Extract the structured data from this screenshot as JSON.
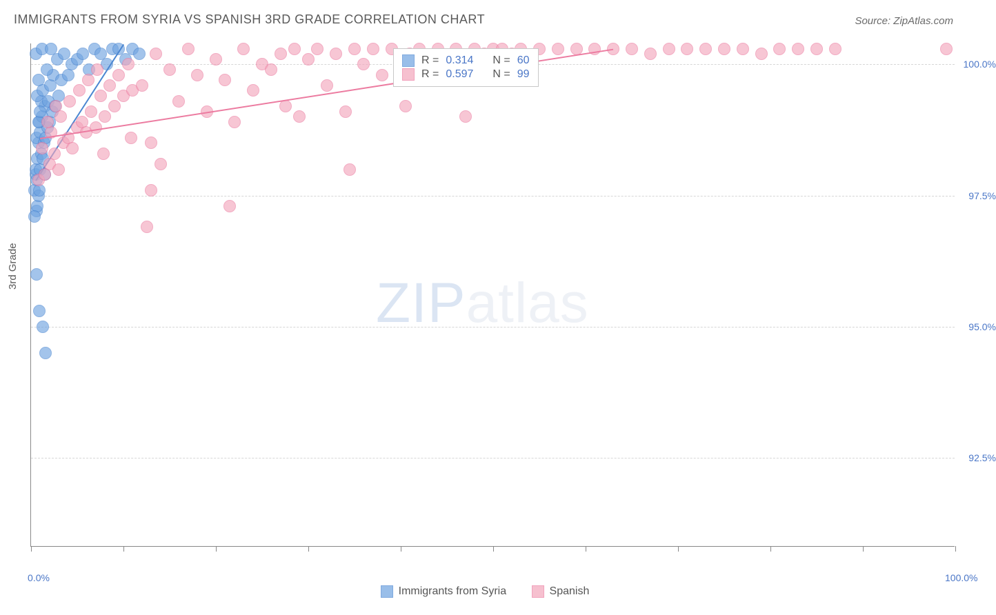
{
  "title": "IMMIGRANTS FROM SYRIA VS SPANISH 3RD GRADE CORRELATION CHART",
  "source": "Source: ZipAtlas.com",
  "yaxis_title": "3rd Grade",
  "watermark_zip": "ZIP",
  "watermark_atlas": "atlas",
  "chart": {
    "type": "scatter",
    "xlim": [
      0,
      100
    ],
    "ylim": [
      90.8,
      100.4
    ],
    "y_gridlines": [
      92.5,
      95.0,
      97.5,
      100.0
    ],
    "y_tick_labels": [
      "92.5%",
      "95.0%",
      "97.5%",
      "100.0%"
    ],
    "x_ticks": [
      0,
      10,
      20,
      30,
      40,
      50,
      60,
      70,
      80,
      90,
      100
    ],
    "x_tick_labels": {
      "0": "0.0%",
      "100": "100.0%"
    },
    "background_color": "#ffffff",
    "grid_color": "#d6d6d6",
    "dot_radius": 9,
    "dot_stroke_width": 1.5,
    "dot_fill_opacity": 0.28,
    "series": [
      {
        "name": "Immigrants from Syria",
        "color": "#6fa3e0",
        "stroke": "#4a86d1",
        "R": 0.314,
        "N": 60,
        "trend": {
          "x1": 0.5,
          "y1": 97.8,
          "x2": 10.0,
          "y2": 100.4
        },
        "points": [
          [
            0.4,
            97.6
          ],
          [
            0.5,
            97.9
          ],
          [
            0.6,
            97.2
          ],
          [
            0.7,
            97.3
          ],
          [
            0.8,
            97.5
          ],
          [
            0.6,
            97.8
          ],
          [
            0.9,
            97.6
          ],
          [
            0.5,
            98.0
          ],
          [
            0.7,
            98.2
          ],
          [
            1.0,
            98.0
          ],
          [
            1.1,
            98.3
          ],
          [
            0.8,
            98.5
          ],
          [
            1.3,
            98.2
          ],
          [
            0.6,
            98.6
          ],
          [
            1.0,
            98.7
          ],
          [
            1.4,
            98.5
          ],
          [
            0.9,
            98.9
          ],
          [
            1.6,
            98.6
          ],
          [
            1.2,
            99.0
          ],
          [
            1.8,
            98.8
          ],
          [
            1.5,
            99.2
          ],
          [
            2.0,
            98.9
          ],
          [
            1.1,
            99.3
          ],
          [
            2.3,
            99.1
          ],
          [
            0.7,
            99.4
          ],
          [
            1.9,
            99.3
          ],
          [
            2.6,
            99.2
          ],
          [
            1.3,
            99.5
          ],
          [
            2.1,
            99.6
          ],
          [
            3.0,
            99.4
          ],
          [
            0.8,
            99.7
          ],
          [
            2.4,
            99.8
          ],
          [
            1.7,
            99.9
          ],
          [
            3.3,
            99.7
          ],
          [
            2.8,
            100.1
          ],
          [
            0.5,
            100.2
          ],
          [
            1.2,
            100.3
          ],
          [
            4.0,
            99.8
          ],
          [
            3.6,
            100.2
          ],
          [
            4.4,
            100.0
          ],
          [
            2.2,
            100.3
          ],
          [
            5.0,
            100.1
          ],
          [
            5.6,
            100.2
          ],
          [
            6.3,
            99.9
          ],
          [
            6.9,
            100.3
          ],
          [
            7.5,
            100.2
          ],
          [
            8.2,
            100.0
          ],
          [
            8.8,
            100.3
          ],
          [
            9.5,
            100.3
          ],
          [
            10.2,
            100.1
          ],
          [
            11.0,
            100.3
          ],
          [
            11.7,
            100.2
          ],
          [
            0.9,
            95.3
          ],
          [
            1.3,
            95.0
          ],
          [
            1.6,
            94.5
          ],
          [
            0.6,
            96.0
          ],
          [
            0.8,
            98.9
          ],
          [
            0.4,
            97.1
          ],
          [
            1.5,
            97.9
          ],
          [
            1.0,
            99.1
          ]
        ]
      },
      {
        "name": "Spanish",
        "color": "#f3a6bc",
        "stroke": "#ec7ba0",
        "R": 0.597,
        "N": 99,
        "trend": {
          "x1": 1.0,
          "y1": 98.6,
          "x2": 63.0,
          "y2": 100.3
        },
        "points": [
          [
            0.8,
            97.8
          ],
          [
            1.5,
            97.9
          ],
          [
            2.0,
            98.1
          ],
          [
            2.5,
            98.3
          ],
          [
            1.2,
            98.4
          ],
          [
            3.0,
            98.0
          ],
          [
            3.5,
            98.5
          ],
          [
            2.2,
            98.7
          ],
          [
            4.0,
            98.6
          ],
          [
            1.8,
            98.9
          ],
          [
            4.5,
            98.4
          ],
          [
            5.0,
            98.8
          ],
          [
            3.2,
            99.0
          ],
          [
            5.5,
            98.9
          ],
          [
            2.7,
            99.2
          ],
          [
            6.0,
            98.7
          ],
          [
            6.5,
            99.1
          ],
          [
            4.2,
            99.3
          ],
          [
            7.0,
            98.8
          ],
          [
            7.5,
            99.4
          ],
          [
            5.2,
            99.5
          ],
          [
            8.0,
            99.0
          ],
          [
            8.5,
            99.6
          ],
          [
            6.2,
            99.7
          ],
          [
            9.0,
            99.2
          ],
          [
            9.5,
            99.8
          ],
          [
            7.2,
            99.9
          ],
          [
            10.0,
            99.4
          ],
          [
            10.5,
            100.0
          ],
          [
            11.0,
            99.5
          ],
          [
            12.0,
            99.6
          ],
          [
            13.0,
            98.5
          ],
          [
            14.0,
            98.1
          ],
          [
            13.5,
            100.2
          ],
          [
            15.0,
            99.9
          ],
          [
            16.0,
            99.3
          ],
          [
            17.0,
            100.3
          ],
          [
            18.0,
            99.8
          ],
          [
            19.0,
            99.1
          ],
          [
            20.0,
            100.1
          ],
          [
            21.0,
            99.7
          ],
          [
            22.0,
            98.9
          ],
          [
            23.0,
            100.3
          ],
          [
            24.0,
            99.5
          ],
          [
            25.0,
            100.0
          ],
          [
            26.0,
            99.9
          ],
          [
            27.0,
            100.2
          ],
          [
            27.5,
            99.2
          ],
          [
            28.5,
            100.3
          ],
          [
            29.0,
            99.0
          ],
          [
            30.0,
            100.1
          ],
          [
            31.0,
            100.3
          ],
          [
            32.0,
            99.6
          ],
          [
            33.0,
            100.2
          ],
          [
            34.0,
            99.1
          ],
          [
            34.5,
            98.0
          ],
          [
            35.0,
            100.3
          ],
          [
            36.0,
            100.0
          ],
          [
            37.0,
            100.3
          ],
          [
            38.0,
            99.8
          ],
          [
            39.0,
            100.3
          ],
          [
            40.0,
            99.9
          ],
          [
            40.5,
            99.2
          ],
          [
            41.0,
            100.2
          ],
          [
            42.0,
            100.3
          ],
          [
            43.0,
            100.0
          ],
          [
            44.0,
            100.3
          ],
          [
            45.0,
            100.1
          ],
          [
            46.0,
            100.3
          ],
          [
            47.0,
            99.0
          ],
          [
            48.0,
            100.3
          ],
          [
            49.0,
            100.2
          ],
          [
            50.0,
            100.3
          ],
          [
            51.0,
            100.3
          ],
          [
            52.0,
            100.2
          ],
          [
            53.0,
            100.3
          ],
          [
            55.0,
            100.3
          ],
          [
            57.0,
            100.3
          ],
          [
            59.0,
            100.3
          ],
          [
            61.0,
            100.3
          ],
          [
            63.0,
            100.3
          ],
          [
            65.0,
            100.3
          ],
          [
            67.0,
            100.2
          ],
          [
            69.0,
            100.3
          ],
          [
            71.0,
            100.3
          ],
          [
            73.0,
            100.3
          ],
          [
            75.0,
            100.3
          ],
          [
            77.0,
            100.3
          ],
          [
            79.0,
            100.2
          ],
          [
            81.0,
            100.3
          ],
          [
            83.0,
            100.3
          ],
          [
            85.0,
            100.3
          ],
          [
            87.0,
            100.3
          ],
          [
            99.0,
            100.3
          ],
          [
            12.5,
            96.9
          ],
          [
            21.5,
            97.3
          ],
          [
            13.0,
            97.6
          ],
          [
            7.8,
            98.3
          ],
          [
            10.8,
            98.6
          ]
        ]
      }
    ]
  },
  "legend_labels": {
    "syria": "Immigrants from Syria",
    "spanish": "Spanish",
    "R_eq": "R =",
    "N_eq": "N ="
  }
}
